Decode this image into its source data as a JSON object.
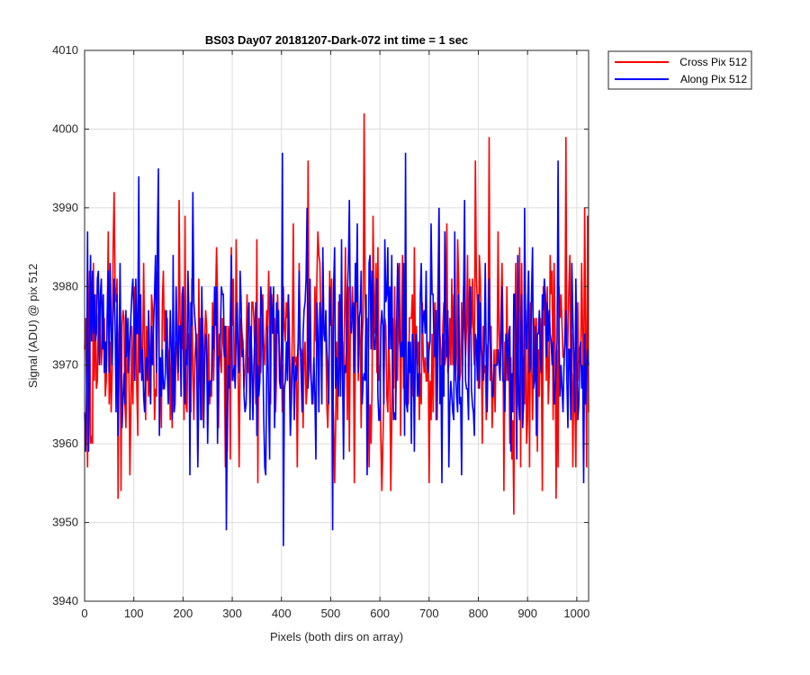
{
  "chart_data": {
    "type": "line",
    "title": "BS03 Day07 20181207-Dark-072 int time = 1 sec",
    "xlabel": "Pixels (both dirs on array)",
    "ylabel": "Signal (ADU) @ pix 512",
    "xlim": [
      0,
      1024
    ],
    "ylim": [
      3940,
      4010
    ],
    "xticks": [
      0,
      100,
      200,
      300,
      400,
      500,
      600,
      700,
      800,
      900,
      1000
    ],
    "yticks": [
      3940,
      3950,
      3960,
      3970,
      3980,
      3990,
      4000,
      4010
    ],
    "grid": true,
    "legend_position": "outside-top-right",
    "series": [
      {
        "name": "Cross Pix 512",
        "color": "#ff0000",
        "noise_summary": {
          "mean": 3972,
          "min": 3951,
          "max": 4002,
          "typical_range": [
            3960,
            3985
          ]
        },
        "highlights": [
          {
            "x": 568,
            "y": 4002
          },
          {
            "x": 823,
            "y": 3999
          },
          {
            "x": 978,
            "y": 3999
          },
          {
            "x": 873,
            "y": 3951
          },
          {
            "x": 68,
            "y": 3953
          },
          {
            "x": 958,
            "y": 3953
          },
          {
            "x": 622,
            "y": 3954
          },
          {
            "x": 1022,
            "y": 3989
          }
        ]
      },
      {
        "name": "Along Pix 512",
        "color": "#0000ff",
        "noise_summary": {
          "mean": 3972,
          "min": 3947,
          "max": 3997,
          "typical_range": [
            3961,
            3984
          ]
        },
        "highlights": [
          {
            "x": 404,
            "y": 3947
          },
          {
            "x": 289,
            "y": 3949
          },
          {
            "x": 504,
            "y": 3949
          },
          {
            "x": 402,
            "y": 3997
          },
          {
            "x": 653,
            "y": 3997
          },
          {
            "x": 150,
            "y": 3995
          },
          {
            "x": 110,
            "y": 3994
          },
          {
            "x": 963,
            "y": 3996
          }
        ]
      }
    ]
  }
}
